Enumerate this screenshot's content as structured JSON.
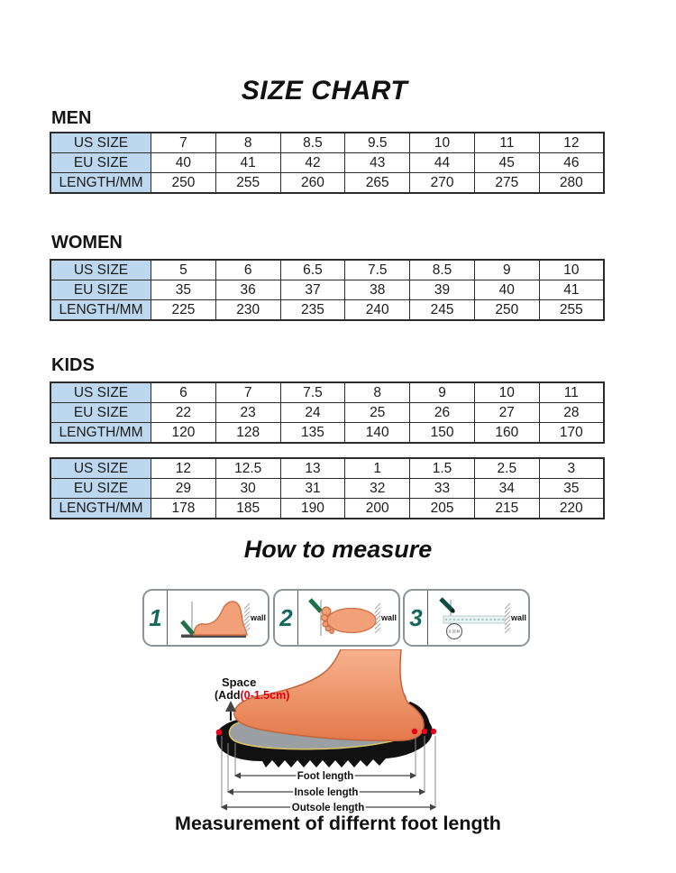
{
  "title": "SIZE CHART",
  "measure_title": "How to measure",
  "caption": "Measurement of differnt foot length",
  "row_headers": [
    "US SIZE",
    "EU SIZE",
    "LENGTH/MM"
  ],
  "tables": [
    {
      "section": "MEN",
      "us": [
        "7",
        "8",
        "8.5",
        "9.5",
        "10",
        "11",
        "12"
      ],
      "eu": [
        "40",
        "41",
        "42",
        "43",
        "44",
        "45",
        "46"
      ],
      "length": [
        "250",
        "255",
        "260",
        "265",
        "270",
        "275",
        "280"
      ]
    },
    {
      "section": "WOMEN",
      "us": [
        "5",
        "6",
        "6.5",
        "7.5",
        "8.5",
        "9",
        "10"
      ],
      "eu": [
        "35",
        "36",
        "37",
        "38",
        "39",
        "40",
        "41"
      ],
      "length": [
        "225",
        "230",
        "235",
        "240",
        "245",
        "250",
        "255"
      ]
    },
    {
      "section": "KIDS",
      "us": [
        "6",
        "7",
        "7.5",
        "8",
        "9",
        "10",
        "11"
      ],
      "eu": [
        "22",
        "23",
        "24",
        "25",
        "26",
        "27",
        "28"
      ],
      "length": [
        "120",
        "128",
        "135",
        "140",
        "150",
        "160",
        "170"
      ]
    },
    {
      "section": "",
      "us": [
        "12",
        "12.5",
        "13",
        "1",
        "1.5",
        "2.5",
        "3"
      ],
      "eu": [
        "29",
        "30",
        "31",
        "32",
        "33",
        "34",
        "35"
      ],
      "length": [
        "178",
        "185",
        "190",
        "200",
        "205",
        "215",
        "220"
      ]
    }
  ],
  "steps": [
    {
      "number": "1",
      "wall_label": "wall"
    },
    {
      "number": "2",
      "wall_label": "wall"
    },
    {
      "number": "3",
      "wall_label": "wall",
      "circle_note": "0.3CM"
    }
  ],
  "diagram": {
    "space_label": "Space",
    "add_prefix": "(Add",
    "add_value": "(0-1.5cm)",
    "arrow_labels": [
      "Foot length",
      "Insole length",
      "Outsole length"
    ]
  },
  "colors": {
    "header_blue": "#BDD7EE",
    "table_border": "#2B2B2B",
    "step_number_green": "#15695A",
    "marker_green": "#1E7145",
    "skin": "#F2A077",
    "accent_red": "#E00012"
  }
}
